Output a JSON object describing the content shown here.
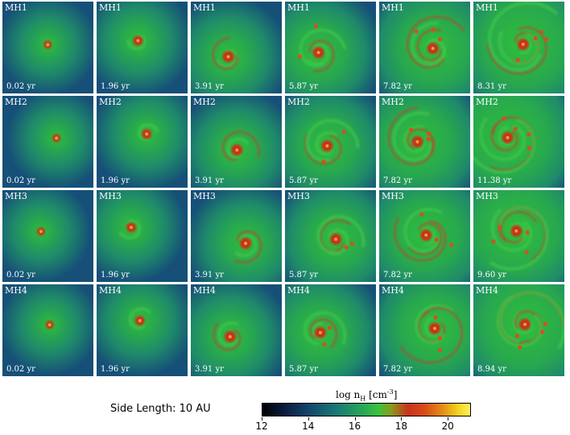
{
  "panels": [
    [
      {
        "label": "MH1",
        "time": "0.02 yr"
      },
      {
        "label": "MH1",
        "time": "1.96 yr"
      },
      {
        "label": "MH1",
        "time": "3.91 yr"
      },
      {
        "label": "MH1",
        "time": "5.87 yr"
      },
      {
        "label": "MH1",
        "time": "7.82 yr"
      },
      {
        "label": "MH1",
        "time": "8.31 yr"
      }
    ],
    [
      {
        "label": "MH2",
        "time": "0.02 yr"
      },
      {
        "label": "MH2",
        "time": "1.96 yr"
      },
      {
        "label": "MH2",
        "time": "3.91 yr"
      },
      {
        "label": "MH2",
        "time": "5.87 yr"
      },
      {
        "label": "MH2",
        "time": "7.82 yr"
      },
      {
        "label": "MH2",
        "time": "11.38 yr"
      }
    ],
    [
      {
        "label": "MH3",
        "time": "0.02 yr"
      },
      {
        "label": "MH3",
        "time": "1.96 yr"
      },
      {
        "label": "MH3",
        "time": "3.91 yr"
      },
      {
        "label": "MH3",
        "time": "5.87 yr"
      },
      {
        "label": "MH3",
        "time": "7.82 yr"
      },
      {
        "label": "MH3",
        "time": "9.60 yr"
      }
    ],
    [
      {
        "label": "MH4",
        "time": "0.02 yr"
      },
      {
        "label": "MH4",
        "time": "1.96 yr"
      },
      {
        "label": "MH4",
        "time": "3.91 yr"
      },
      {
        "label": "MH4",
        "time": "5.87 yr"
      },
      {
        "label": "MH4",
        "time": "7.82 yr"
      },
      {
        "label": "MH4",
        "time": "8.94 yr"
      }
    ]
  ],
  "side_length": "Side Length: 10 AU",
  "colorbar": {
    "title": "log n",
    "title_sub": "H",
    "title_unit": " [cm",
    "title_sup": "-3",
    "title_end": "]",
    "ticks": [
      "12",
      "14",
      "16",
      "18",
      "20"
    ],
    "range": [
      12,
      21
    ],
    "colors": [
      "#000000",
      "#12466a",
      "#26a65a",
      "#c8321e",
      "#f2d21e",
      "#fff060"
    ]
  }
}
